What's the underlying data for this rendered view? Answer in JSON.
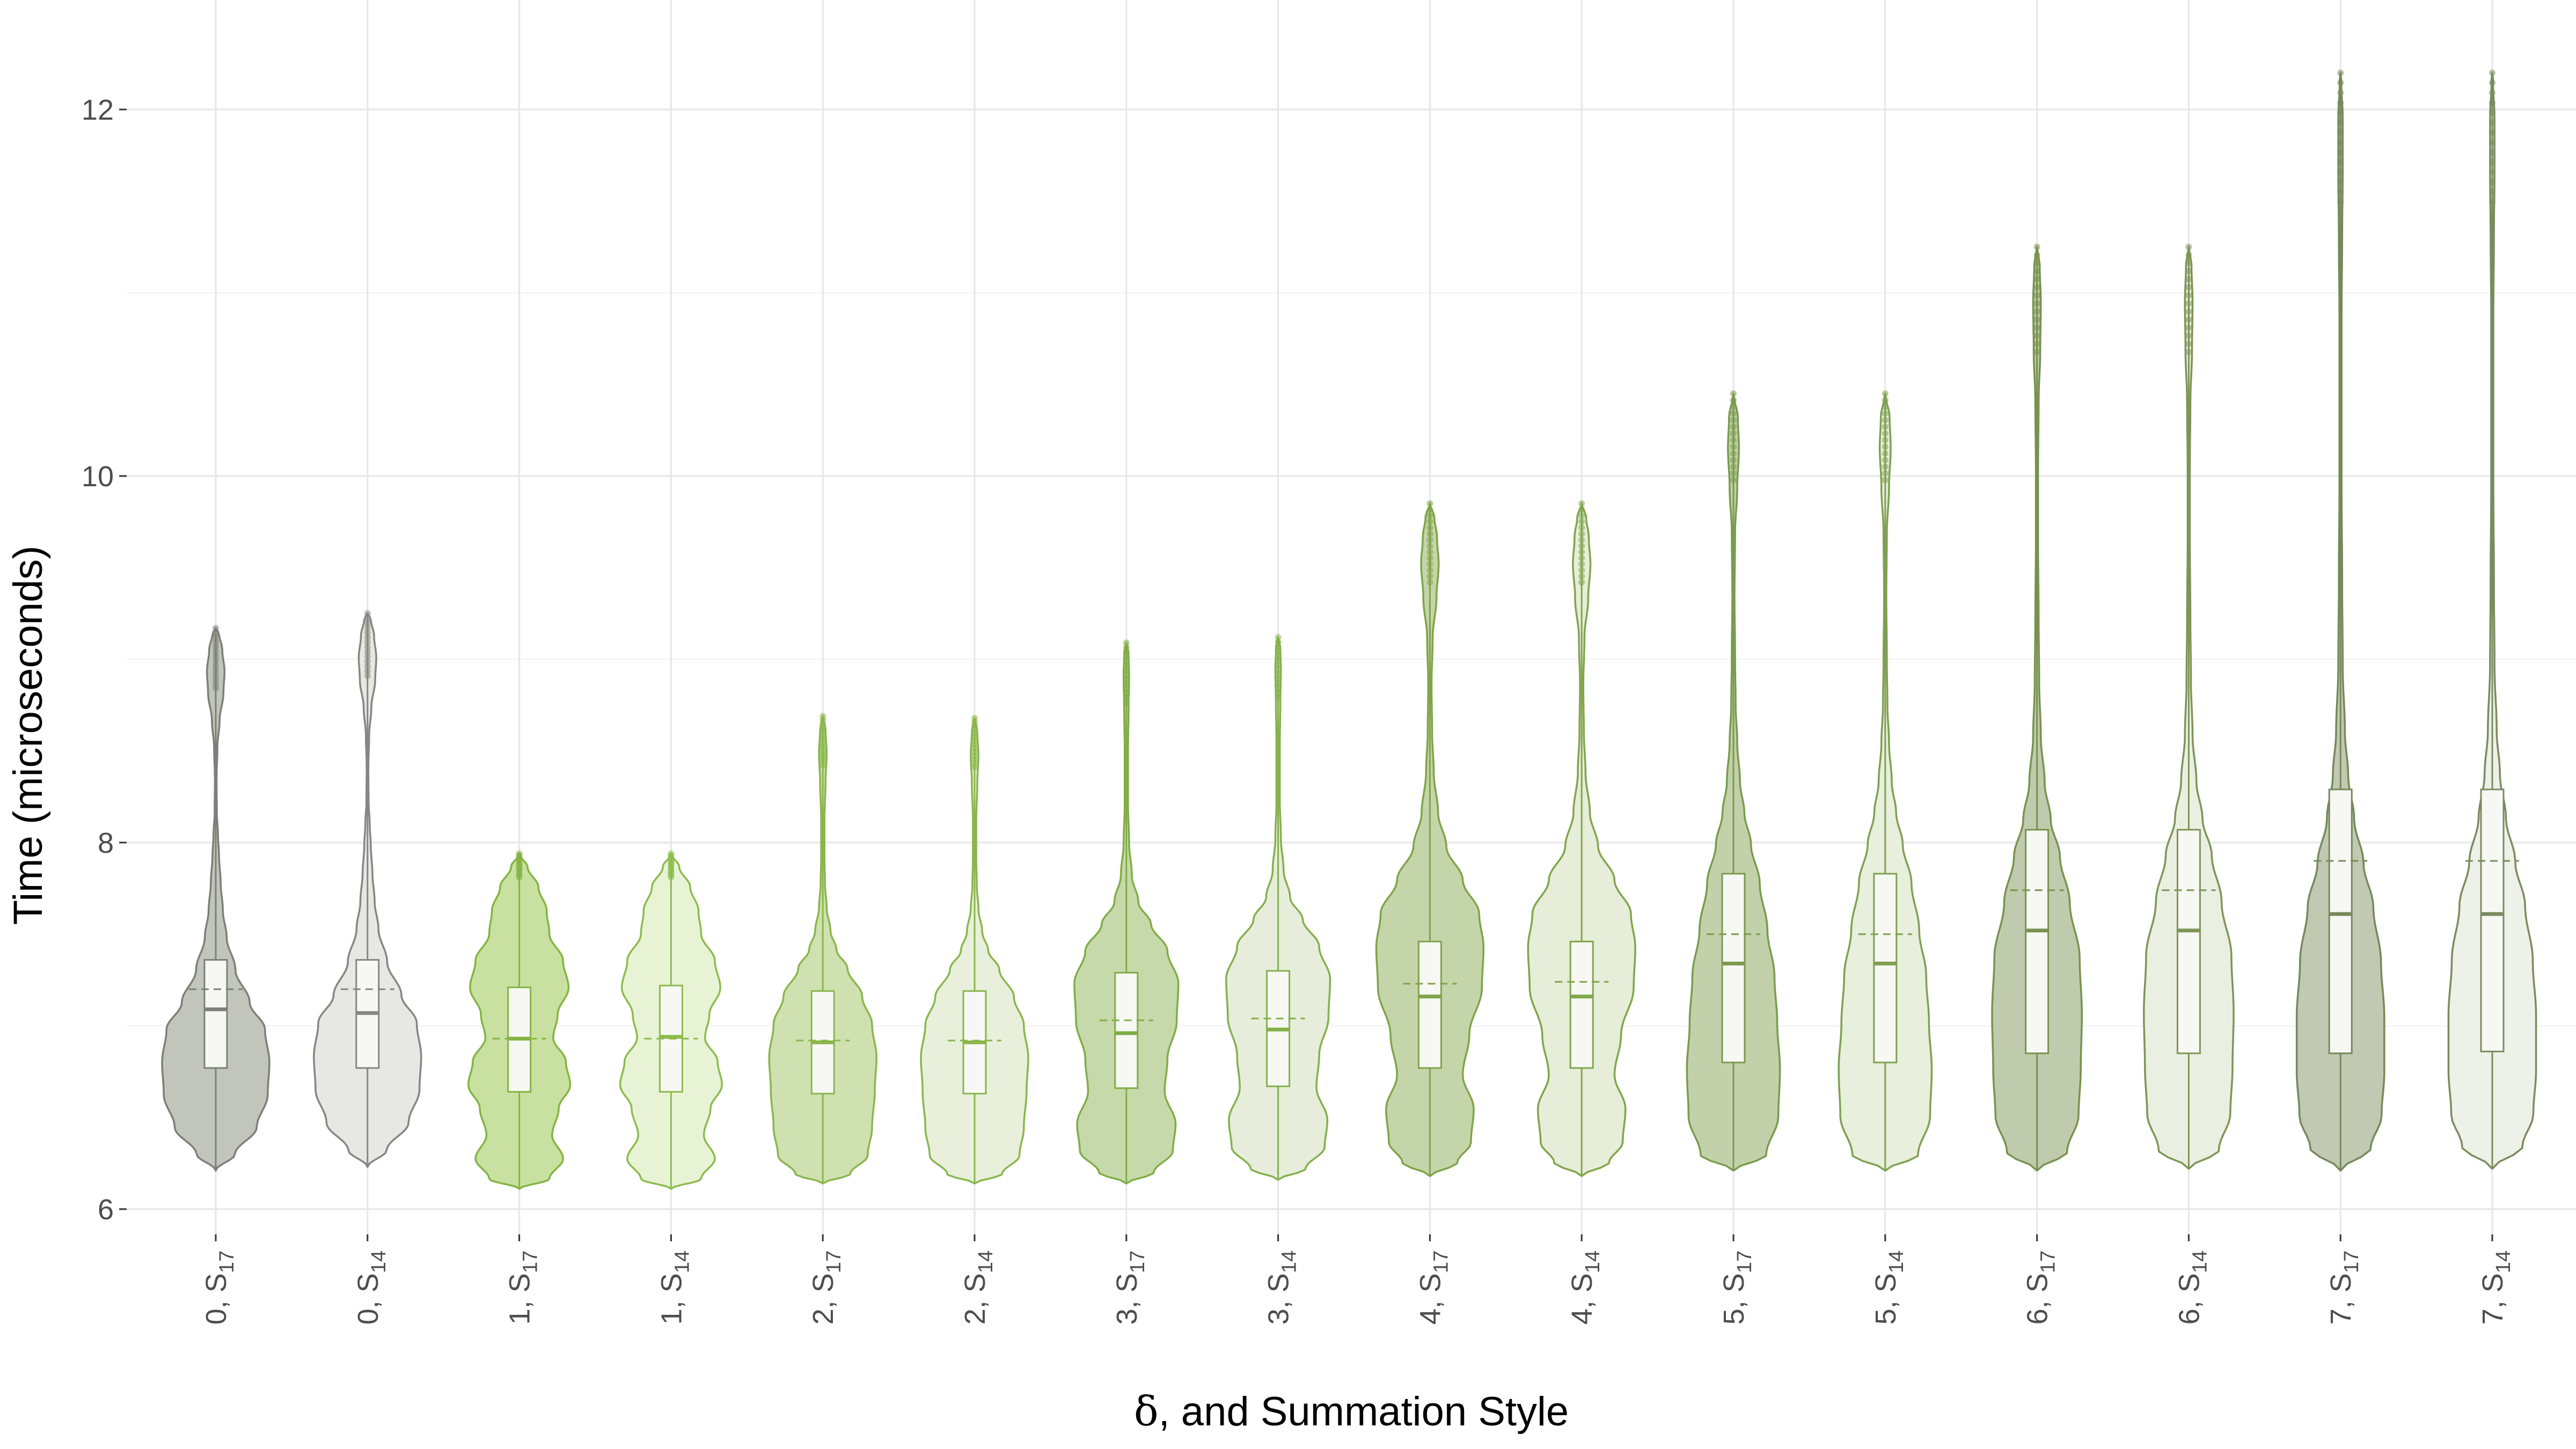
{
  "chart_data": {
    "type": "violin",
    "xlabel_symbol": "δ",
    "xlabel_rest": ", and Summation Style",
    "ylabel": "Time (microseconds)",
    "ylim": [
      5.95,
      12.5
    ],
    "yticks": [
      6,
      8,
      10,
      12
    ],
    "ytick_labels": [
      "6",
      "8",
      "10",
      "12"
    ],
    "grid": true,
    "categories": [
      {
        "delta": "0",
        "style": "S",
        "sub": "17"
      },
      {
        "delta": "0",
        "style": "S",
        "sub": "14"
      },
      {
        "delta": "1",
        "style": "S",
        "sub": "17"
      },
      {
        "delta": "1",
        "style": "S",
        "sub": "14"
      },
      {
        "delta": "2",
        "style": "S",
        "sub": "17"
      },
      {
        "delta": "2",
        "style": "S",
        "sub": "14"
      },
      {
        "delta": "3",
        "style": "S",
        "sub": "17"
      },
      {
        "delta": "3",
        "style": "S",
        "sub": "14"
      },
      {
        "delta": "4",
        "style": "S",
        "sub": "17"
      },
      {
        "delta": "4",
        "style": "S",
        "sub": "14"
      },
      {
        "delta": "5",
        "style": "S",
        "sub": "17"
      },
      {
        "delta": "5",
        "style": "S",
        "sub": "14"
      },
      {
        "delta": "6",
        "style": "S",
        "sub": "17"
      },
      {
        "delta": "6",
        "style": "S",
        "sub": "14"
      },
      {
        "delta": "7",
        "style": "S",
        "sub": "17"
      },
      {
        "delta": "7",
        "style": "S",
        "sub": "14"
      }
    ],
    "series": [
      {
        "min": 6.21,
        "q1": 6.77,
        "median": 7.09,
        "mean": 7.2,
        "q3": 7.36,
        "max": 9.17,
        "fill": "#c2c5bb",
        "stroke": "#7d7f78",
        "profile": "d0"
      },
      {
        "min": 6.23,
        "q1": 6.77,
        "median": 7.07,
        "mean": 7.2,
        "q3": 7.36,
        "max": 9.25,
        "fill": "#e7e8e3",
        "stroke": "#858780",
        "profile": "d0"
      },
      {
        "min": 6.11,
        "q1": 6.64,
        "median": 6.93,
        "mean": 6.93,
        "q3": 7.21,
        "max": 7.94,
        "fill": "#c8e1a0",
        "stroke": "#84b442",
        "profile": "d1"
      },
      {
        "min": 6.11,
        "q1": 6.64,
        "median": 6.94,
        "mean": 6.93,
        "q3": 7.22,
        "max": 7.94,
        "fill": "#e8f3d6",
        "stroke": "#8cbc4c",
        "profile": "d1"
      },
      {
        "min": 6.14,
        "q1": 6.63,
        "median": 6.91,
        "mean": 6.92,
        "q3": 7.19,
        "max": 8.69,
        "fill": "#cfe1b1",
        "stroke": "#8ab64c",
        "profile": "d2"
      },
      {
        "min": 6.14,
        "q1": 6.63,
        "median": 6.91,
        "mean": 6.92,
        "q3": 7.19,
        "max": 8.68,
        "fill": "#e8f0dc",
        "stroke": "#8ab64c",
        "profile": "d2"
      },
      {
        "min": 6.14,
        "q1": 6.66,
        "median": 6.96,
        "mean": 7.03,
        "q3": 7.29,
        "max": 9.09,
        "fill": "#c6d9aa",
        "stroke": "#80ad46",
        "profile": "d3"
      },
      {
        "min": 6.16,
        "q1": 6.67,
        "median": 6.98,
        "mean": 7.04,
        "q3": 7.3,
        "max": 9.12,
        "fill": "#e6eedb",
        "stroke": "#85b04c",
        "profile": "d3"
      },
      {
        "min": 6.18,
        "q1": 6.77,
        "median": 7.16,
        "mean": 7.23,
        "q3": 7.46,
        "max": 9.85,
        "fill": "#c5d5aa",
        "stroke": "#7fa448",
        "profile": "d4"
      },
      {
        "min": 6.18,
        "q1": 6.77,
        "median": 7.16,
        "mean": 7.24,
        "q3": 7.46,
        "max": 9.85,
        "fill": "#e6edd9",
        "stroke": "#80a64a",
        "profile": "d4"
      },
      {
        "min": 6.21,
        "q1": 6.8,
        "median": 7.34,
        "mean": 7.5,
        "q3": 7.83,
        "max": 10.45,
        "fill": "#c2d1aa",
        "stroke": "#7a9b4e",
        "profile": "d5"
      },
      {
        "min": 6.21,
        "q1": 6.8,
        "median": 7.34,
        "mean": 7.5,
        "q3": 7.83,
        "max": 10.45,
        "fill": "#e8efdc",
        "stroke": "#7fa052",
        "profile": "d5"
      },
      {
        "min": 6.21,
        "q1": 6.85,
        "median": 7.52,
        "mean": 7.74,
        "q3": 8.07,
        "max": 11.25,
        "fill": "#c0cbad",
        "stroke": "#78924f",
        "profile": "d6"
      },
      {
        "min": 6.22,
        "q1": 6.85,
        "median": 7.52,
        "mean": 7.74,
        "q3": 8.07,
        "max": 11.25,
        "fill": "#eaefe2",
        "stroke": "#7d9556",
        "profile": "d6"
      },
      {
        "min": 6.21,
        "q1": 6.85,
        "median": 7.61,
        "mean": 7.9,
        "q3": 8.29,
        "max": 12.2,
        "fill": "#c1c9b3",
        "stroke": "#76895a",
        "profile": "d7"
      },
      {
        "min": 6.22,
        "q1": 6.86,
        "median": 7.61,
        "mean": 7.9,
        "q3": 8.29,
        "max": 12.2,
        "fill": "#edf1e8",
        "stroke": "#7a8c5f",
        "profile": "d7"
      }
    ]
  }
}
